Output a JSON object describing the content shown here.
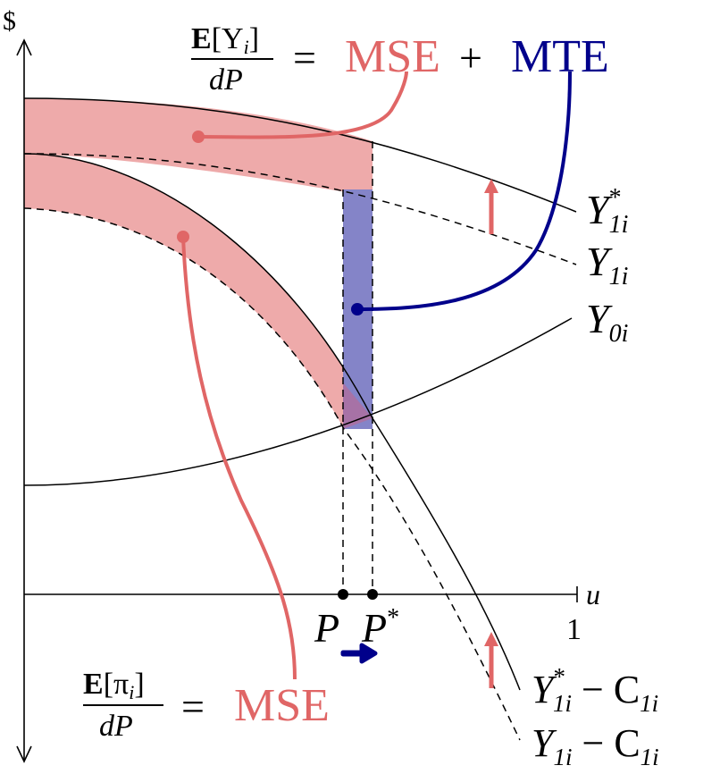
{
  "axis": {
    "y_symbol": "$",
    "x_var": "u",
    "x_max_tick": "1",
    "p_label": "P",
    "pstar_label": "P",
    "pstar_sup": "*"
  },
  "top_eq": {
    "num_E": "E",
    "num_rest": "[Y",
    "num_sub": "i",
    "num_close": "]",
    "den": "dP",
    "equals": "=",
    "mse": "MSE",
    "plus": "+",
    "mte": "MTE"
  },
  "bottom_eq": {
    "num_E": "E",
    "num_rest": "[π",
    "num_sub": "i",
    "num_close": "]",
    "den": "dP",
    "equals": "=",
    "mse": "MSE"
  },
  "curves": {
    "y1star": {
      "base": "Y",
      "sup": "*",
      "sub": "1i"
    },
    "y1": {
      "base": "Y",
      "sub": "1i"
    },
    "y0": {
      "base": "Y",
      "sub": "0i"
    },
    "y1star_minus_c": {
      "base": "Y",
      "sup": "*",
      "sub": "1i",
      "rest": " − C",
      "rest_sub": "1i"
    },
    "y1_minus_c": {
      "base": "Y",
      "sub": "1i",
      "rest": " − C",
      "rest_sub": "1i"
    }
  },
  "colors": {
    "mse_red": "#e06666",
    "mse_fill": "#eeaaaa",
    "mte_blue": "#00008b",
    "mte_fill": "#8484c8",
    "overlap_fill": "#a772a6",
    "line": "#000000"
  }
}
